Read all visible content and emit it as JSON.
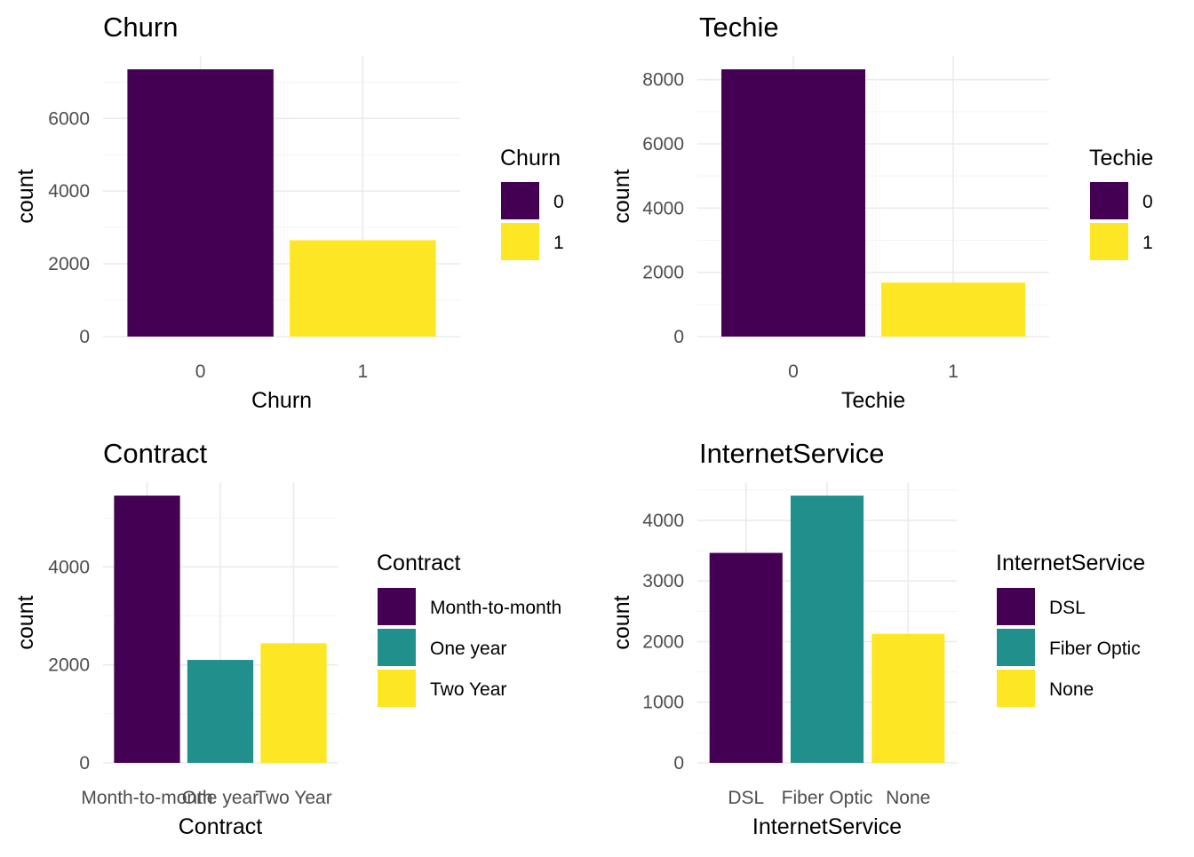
{
  "chart_data": [
    {
      "type": "bar",
      "title": "Churn",
      "xlabel": "Churn",
      "ylabel": "count",
      "categories": [
        "0",
        "1"
      ],
      "values": [
        7350,
        2650
      ],
      "colors": [
        "#440154",
        "#FDE725"
      ],
      "ylim": [
        0,
        7350
      ],
      "yticks": [
        0,
        2000,
        4000,
        6000
      ],
      "yticks_labels": [
        "0",
        "2000",
        "4000",
        "6000"
      ],
      "grid": true,
      "legend": {
        "title": "Churn",
        "position": "right",
        "labels": [
          "0",
          "1"
        ]
      }
    },
    {
      "type": "bar",
      "title": "Techie",
      "xlabel": "Techie",
      "ylabel": "count",
      "categories": [
        "0",
        "1"
      ],
      "values": [
        8321,
        1679
      ],
      "colors": [
        "#440154",
        "#FDE725"
      ],
      "ylim": [
        0,
        8321
      ],
      "yticks": [
        0,
        2000,
        4000,
        6000,
        8000
      ],
      "yticks_labels": [
        "0",
        "2000",
        "4000",
        "6000",
        "8000"
      ],
      "grid": true,
      "legend": {
        "title": "Techie",
        "position": "right",
        "labels": [
          "0",
          "1"
        ]
      }
    },
    {
      "type": "bar",
      "title": "Contract",
      "xlabel": "Contract",
      "ylabel": "count",
      "categories": [
        "Month-to-month",
        "One year",
        "Two Year"
      ],
      "values": [
        5456,
        2102,
        2442
      ],
      "colors": [
        "#440154",
        "#21908C",
        "#FDE725"
      ],
      "ylim": [
        0,
        5456
      ],
      "yticks": [
        0,
        2000,
        4000
      ],
      "yticks_labels": [
        "0",
        "2000",
        "4000"
      ],
      "grid": true,
      "legend": {
        "title": "Contract",
        "position": "right",
        "labels": [
          "Month-to-month",
          "One year",
          "Two Year"
        ]
      }
    },
    {
      "type": "bar",
      "title": "InternetService",
      "xlabel": "InternetService",
      "ylabel": "count",
      "categories": [
        "DSL",
        "Fiber Optic",
        "None"
      ],
      "values": [
        3463,
        4408,
        2129
      ],
      "colors": [
        "#440154",
        "#21908C",
        "#FDE725"
      ],
      "ylim": [
        0,
        4408
      ],
      "yticks": [
        0,
        1000,
        2000,
        3000,
        4000
      ],
      "yticks_labels": [
        "0",
        "1000",
        "2000",
        "3000",
        "4000"
      ],
      "grid": true,
      "legend": {
        "title": "InternetService",
        "position": "right",
        "labels": [
          "DSL",
          "Fiber Optic",
          "None"
        ]
      }
    }
  ]
}
